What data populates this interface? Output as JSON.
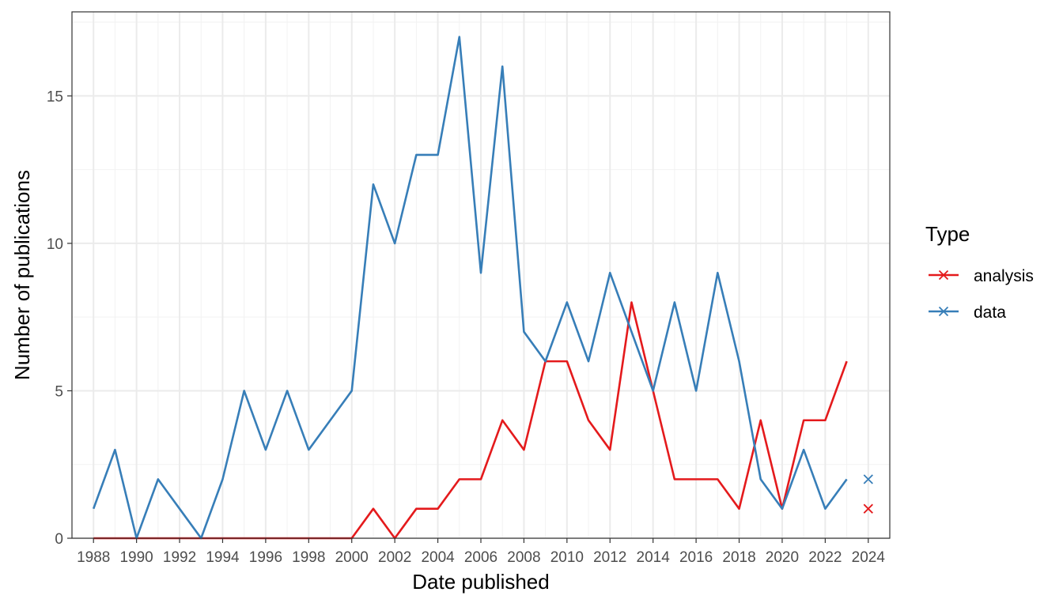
{
  "chart_data": {
    "type": "line",
    "title": "",
    "xlabel": "Date published",
    "ylabel": "Number of publications",
    "x": [
      1988,
      1989,
      1990,
      1991,
      1992,
      1993,
      1994,
      1995,
      1996,
      1997,
      1998,
      1999,
      2000,
      2001,
      2002,
      2003,
      2004,
      2005,
      2006,
      2007,
      2008,
      2009,
      2010,
      2011,
      2012,
      2013,
      2014,
      2015,
      2016,
      2017,
      2018,
      2019,
      2020,
      2021,
      2022,
      2023
    ],
    "xlim": [
      1987,
      2025
    ],
    "ylim": [
      0,
      17.85
    ],
    "x_ticks": [
      "1988",
      "1990",
      "1992",
      "1994",
      "1996",
      "1998",
      "2000",
      "2002",
      "2004",
      "2006",
      "2008",
      "2010",
      "2012",
      "2014",
      "2016",
      "2018",
      "2020",
      "2022",
      "2024"
    ],
    "y_ticks": [
      "0",
      "5",
      "10",
      "15"
    ],
    "grid": true,
    "legend": {
      "title": "Type",
      "position": "right"
    },
    "series": [
      {
        "name": "analysis",
        "color": "#E41A1C",
        "values": [
          0,
          0,
          0,
          0,
          0,
          0,
          0,
          0,
          0,
          0,
          0,
          0,
          0,
          1,
          0,
          1,
          1,
          2,
          2,
          4,
          3,
          6,
          6,
          4,
          3,
          8,
          5,
          2,
          2,
          2,
          1,
          4,
          1,
          4,
          4,
          6
        ],
        "point": {
          "x": 2024,
          "y": 1
        }
      },
      {
        "name": "data",
        "color": "#377EB8",
        "values": [
          1,
          3,
          0,
          2,
          1,
          0,
          2,
          5,
          3,
          5,
          3,
          4,
          5,
          12,
          10,
          13,
          13,
          17,
          9,
          16,
          7,
          6,
          8,
          6,
          9,
          7,
          5,
          8,
          5,
          9,
          6,
          2,
          1,
          3,
          1,
          2
        ],
        "point": {
          "x": 2024,
          "y": 2
        }
      }
    ]
  }
}
